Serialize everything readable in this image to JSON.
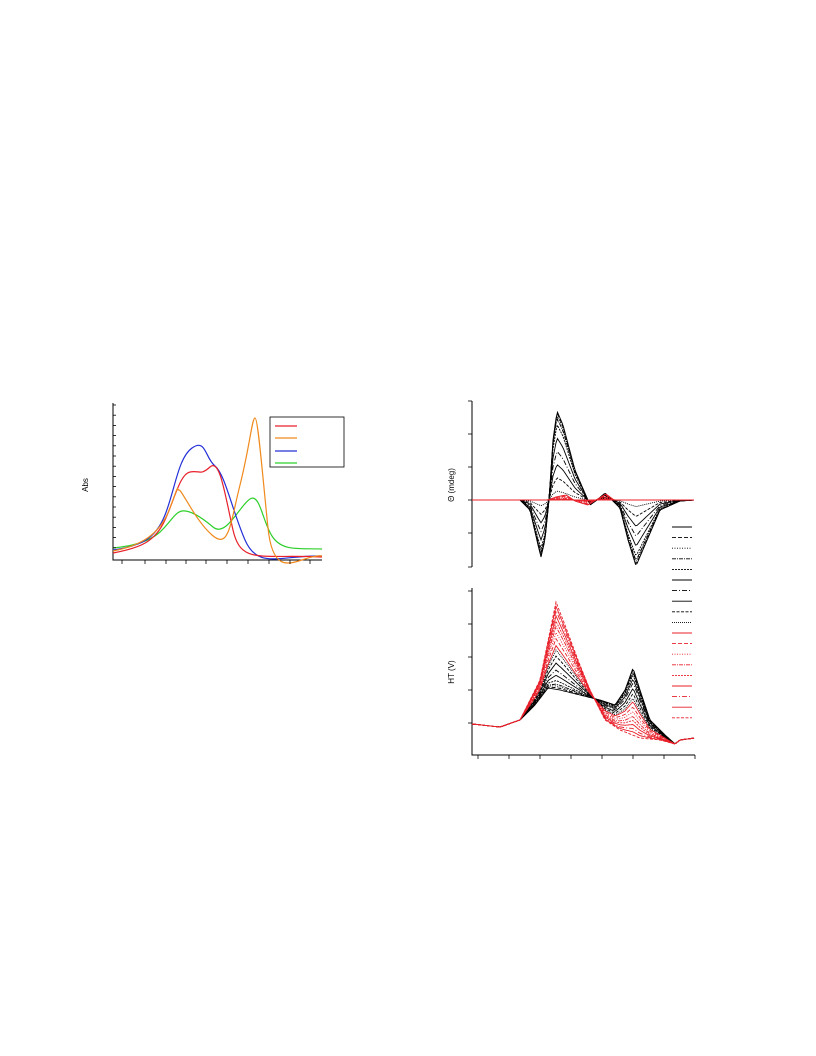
{
  "figure_a": {
    "y_label": "Abs"
  },
  "figure_b": {
    "y_label": "Θ (mdeg)"
  },
  "figure_c": {
    "y_label": "HT (V)"
  }
}
